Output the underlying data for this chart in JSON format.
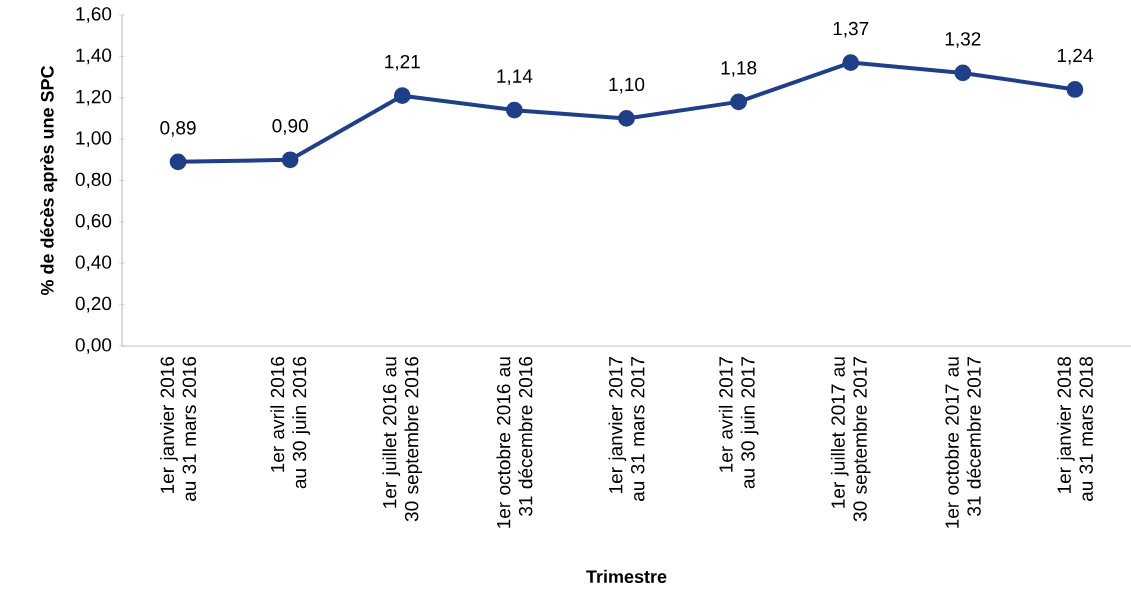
{
  "chart_data": {
    "type": "line",
    "xlabel": "Trimestre",
    "ylabel": "% de décès après une SPC",
    "categories": [
      "1er janvier 2016 au 31 mars 2016",
      "1er avril 2016 au 30 juin 2016",
      "1er juillet 2016 au 30 septembre 2016",
      "1er octobre 2016 au 31 décembre 2016",
      "1er janvier 2017 au 31 mars 2017",
      "1er avril 2017 au 30 juin 2017",
      "1er juillet 2017 au 30 septembre 2017",
      "1er octobre 2017 au 31 décembre 2017",
      "1er janvier 2018 au 31 mars 2018"
    ],
    "values": [
      0.89,
      0.9,
      1.21,
      1.14,
      1.1,
      1.18,
      1.37,
      1.32,
      1.24
    ],
    "value_labels": [
      "0,89",
      "0,90",
      "1,21",
      "1,14",
      "1,10",
      "1,18",
      "1,37",
      "1,32",
      "1,24"
    ],
    "color": "#1f3f88",
    "marker": "circle",
    "line_style": "solid",
    "grid": false,
    "ylim": [
      0,
      1.6
    ],
    "yticks": [
      {
        "value": 0,
        "label": "0,00"
      },
      {
        "value": 0.2,
        "label": "0,20"
      },
      {
        "value": 0.4,
        "label": "0,40"
      },
      {
        "value": 0.6,
        "label": "0,60"
      },
      {
        "value": 0.8,
        "label": "0,80"
      },
      {
        "value": 1.0,
        "label": "1,00"
      },
      {
        "value": 1.2,
        "label": "1,20"
      },
      {
        "value": 1.4,
        "label": "1,40"
      },
      {
        "value": 1.6,
        "label": "1,60"
      }
    ]
  }
}
